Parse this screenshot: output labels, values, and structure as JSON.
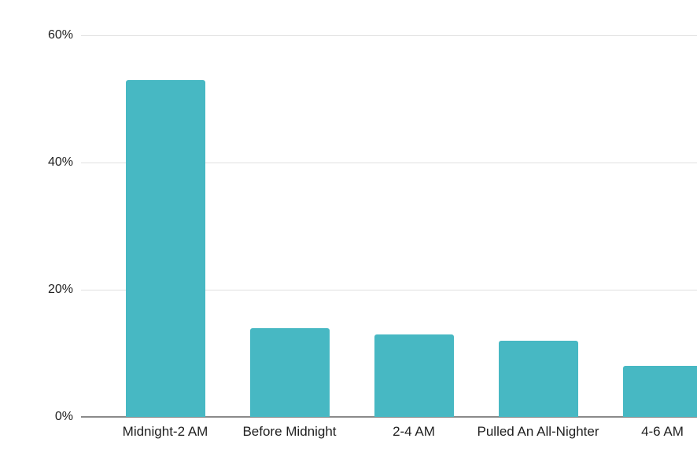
{
  "chart_data": {
    "type": "bar",
    "title": "",
    "xlabel": "",
    "ylabel": "",
    "categories": [
      "Midnight-2 AM",
      "Before Midnight",
      "2-4 AM",
      "Pulled An All-Nighter",
      "4-6 AM"
    ],
    "values": [
      53,
      14,
      13,
      12,
      8
    ],
    "value_unit": "%",
    "ylim": [
      0,
      60
    ],
    "yticks": [
      {
        "value": 0,
        "label": "0%"
      },
      {
        "value": 20,
        "label": "20%"
      },
      {
        "value": 40,
        "label": "40%"
      },
      {
        "value": 60,
        "label": "60%"
      }
    ],
    "grid": true,
    "legend": false,
    "colors": {
      "bar": "#47b8c3",
      "gridline": "#e0e0e0",
      "axis_line": "#8a8a8a",
      "label": "#1f1f1f"
    }
  }
}
